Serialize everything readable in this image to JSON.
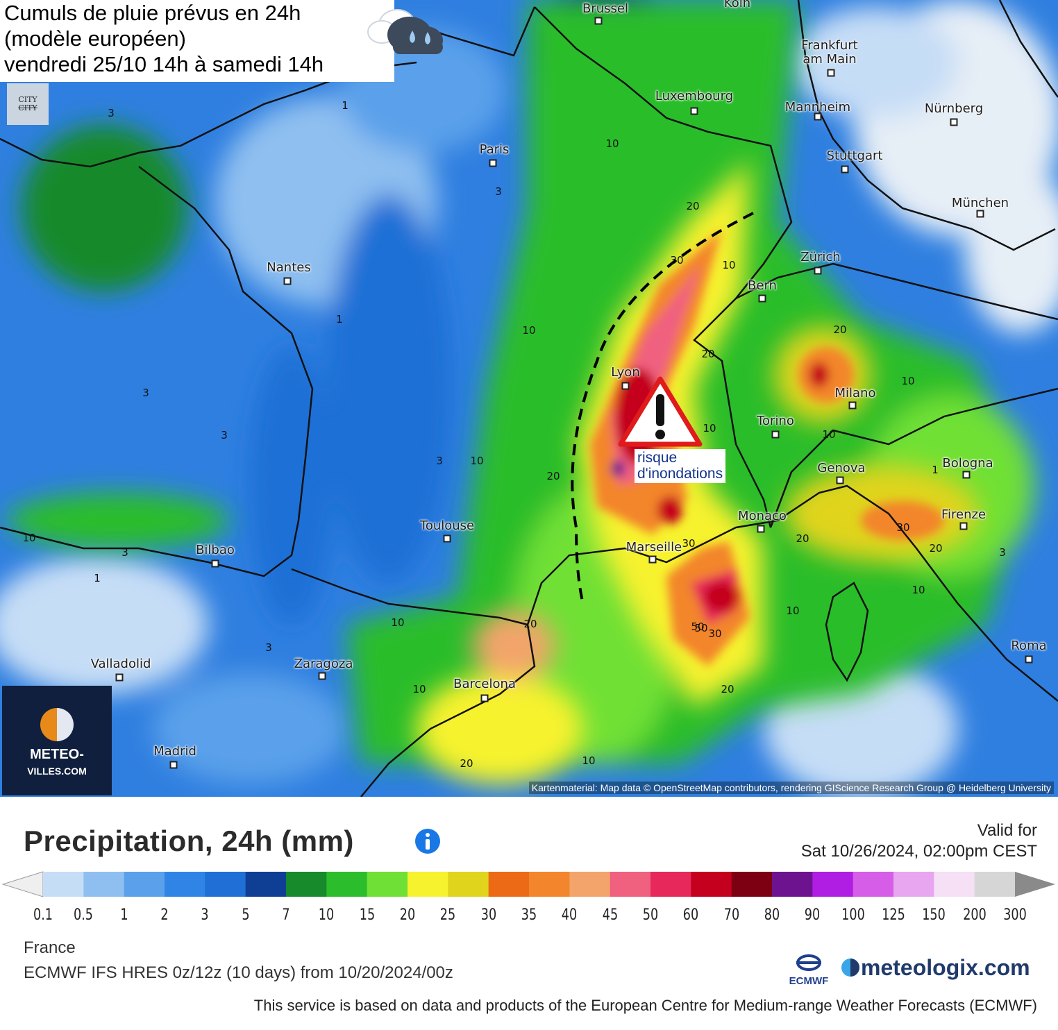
{
  "title": {
    "line1": "Cumuls de pluie prévus en 24h",
    "line2": "(modèle européen)",
    "line3": "vendredi 25/10 14h à samedi 14h"
  },
  "city_badge": {
    "top": "CITY",
    "bottom": "CITY"
  },
  "brand_logo": {
    "name": "METEO-",
    "sub": "VILLES.COM"
  },
  "cities": [
    {
      "id": "brussel",
      "name": "Brussel"
    },
    {
      "id": "koln",
      "name": "Köln"
    },
    {
      "id": "frankfurt",
      "name": "Frankfurt am Main"
    },
    {
      "id": "luxembourg",
      "name": "Luxembourg"
    },
    {
      "id": "mannheim",
      "name": "Mannheim"
    },
    {
      "id": "nurnberg",
      "name": "Nürnberg"
    },
    {
      "id": "stuttgart",
      "name": "Stuttgart"
    },
    {
      "id": "munchen",
      "name": "München"
    },
    {
      "id": "paris",
      "name": "Paris"
    },
    {
      "id": "zurich",
      "name": "Zürich"
    },
    {
      "id": "bern",
      "name": "Bern"
    },
    {
      "id": "nantes",
      "name": "Nantes"
    },
    {
      "id": "lyon",
      "name": "Lyon"
    },
    {
      "id": "milano",
      "name": "Milano"
    },
    {
      "id": "torino",
      "name": "Torino"
    },
    {
      "id": "genova",
      "name": "Genova"
    },
    {
      "id": "bologna",
      "name": "Bologna"
    },
    {
      "id": "monaco",
      "name": "Monaco"
    },
    {
      "id": "firenze",
      "name": "Firenze"
    },
    {
      "id": "marseille",
      "name": "Marseille"
    },
    {
      "id": "toulouse",
      "name": "Toulouse"
    },
    {
      "id": "bilbao",
      "name": "Bilbao"
    },
    {
      "id": "valladolid",
      "name": "Valladolid"
    },
    {
      "id": "zaragoza",
      "name": "Zaragoza"
    },
    {
      "id": "barcelona",
      "name": "Barcelona"
    },
    {
      "id": "madrid",
      "name": "Madrid"
    },
    {
      "id": "roma",
      "name": "Roma"
    }
  ],
  "isolines": [
    "1",
    "3",
    "3",
    "10",
    "20",
    "30",
    "10",
    "10",
    "20",
    "10",
    "20",
    "30",
    "50",
    "20",
    "10",
    "20",
    "30",
    "20",
    "10",
    "10",
    "10",
    "3",
    "3",
    "1",
    "3",
    "10",
    "10",
    "20",
    "10",
    "20",
    "50",
    "30",
    "20",
    "10",
    "1",
    "3",
    "3",
    "10",
    "3",
    "1"
  ],
  "warning": {
    "label_line1": "risque",
    "label_line2": "d'inondations"
  },
  "attribution": "Kartenmaterial: Map data © OpenStreetMap contributors, rendering GIScience Research Group @ Heidelberg University",
  "legend": {
    "title": "Precipitation, 24h (mm)",
    "valid_label": "Valid for",
    "valid_time": "Sat 10/26/2024, 02:00pm CEST",
    "ticks": [
      "0.1",
      "0.5",
      "1",
      "2",
      "3",
      "5",
      "7",
      "10",
      "15",
      "20",
      "25",
      "30",
      "35",
      "40",
      "45",
      "50",
      "60",
      "70",
      "80",
      "90",
      "100",
      "125",
      "150",
      "200",
      "300"
    ],
    "colors": [
      "#c6ddf6",
      "#8fbff0",
      "#5aa0ea",
      "#2f84e6",
      "#1f6fd6",
      "#0f3f95",
      "#178a2b",
      "#2cbd2c",
      "#6fe035",
      "#f7f22e",
      "#e0d41c",
      "#ec6a16",
      "#f3852c",
      "#f3a46a",
      "#f0607f",
      "#e6285a",
      "#c4001e",
      "#7d0012",
      "#6e1390",
      "#b01ee3",
      "#d55de7",
      "#e7a6ef",
      "#f5e0f6",
      "#d6d6d6"
    ],
    "region": "France",
    "model": "ECMWF IFS HRES 0z/12z (10 days) from 10/20/2024/00z",
    "ecmwf": "ECMWF",
    "provider": "meteologix.com",
    "disclaimer": "This service is based on data and products of the European Centre for Medium-range Weather Forecasts (ECMWF)"
  }
}
